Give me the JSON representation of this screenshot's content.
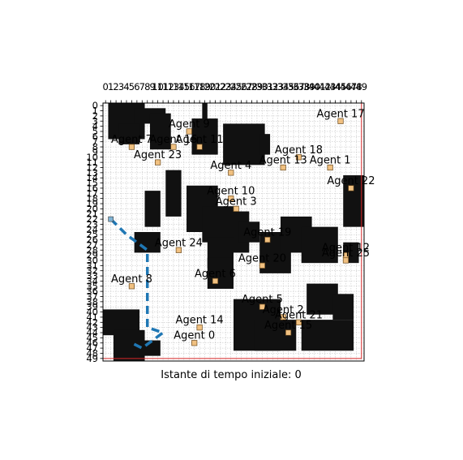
{
  "chart_data": {
    "type": "scatter",
    "title": "",
    "xlabel": "Istante di tempo iniziale: 0",
    "ylabel": "",
    "xlim": [
      0,
      49
    ],
    "ylim": [
      49,
      0
    ],
    "x_ticks": [
      0,
      1,
      2,
      3,
      4,
      5,
      6,
      7,
      8,
      9,
      10,
      11,
      12,
      13,
      14,
      15,
      16,
      17,
      18,
      19,
      20,
      21,
      22,
      23,
      24,
      25,
      26,
      27,
      28,
      29,
      30,
      31,
      32,
      33,
      34,
      35,
      36,
      37,
      38,
      39,
      40,
      41,
      42,
      43,
      44,
      45,
      46,
      47,
      48,
      49
    ],
    "y_ticks": [
      0,
      1,
      2,
      3,
      4,
      5,
      6,
      7,
      8,
      9,
      10,
      11,
      12,
      13,
      14,
      15,
      16,
      17,
      18,
      19,
      20,
      21,
      22,
      23,
      24,
      25,
      26,
      27,
      28,
      29,
      30,
      31,
      32,
      33,
      34,
      35,
      36,
      37,
      38,
      39,
      40,
      41,
      42,
      43,
      44,
      45,
      46,
      47,
      48,
      49
    ],
    "x_axis_position": "top",
    "grid": true,
    "grid_color": "#bbbbbb",
    "obstacle_color": "#111111",
    "agent_color": "#f0c080",
    "path_color": "#1f77b4",
    "boundary_color": "#d62728",
    "boundary": {
      "x": [
        0,
        49
      ],
      "y": [
        0,
        49
      ]
    },
    "obstacles": [
      {
        "x": [
          1,
          7
        ],
        "y": [
          0,
          6
        ]
      },
      {
        "x": [
          6,
          11
        ],
        "y": [
          1,
          3
        ]
      },
      {
        "x": [
          9,
          12
        ],
        "y": [
          2,
          8
        ]
      },
      {
        "x": [
          3,
          6
        ],
        "y": [
          4,
          7
        ]
      },
      {
        "x": [
          19,
          19
        ],
        "y": [
          0,
          3
        ]
      },
      {
        "x": [
          17,
          21
        ],
        "y": [
          3,
          9
        ]
      },
      {
        "x": [
          23,
          30
        ],
        "y": [
          4,
          11
        ]
      },
      {
        "x": [
          30,
          31
        ],
        "y": [
          6,
          9
        ]
      },
      {
        "x": [
          12,
          14
        ],
        "y": [
          13,
          21
        ]
      },
      {
        "x": [
          8,
          10
        ],
        "y": [
          17,
          23
        ]
      },
      {
        "x": [
          16,
          21
        ],
        "y": [
          16,
          24
        ]
      },
      {
        "x": [
          19,
          24
        ],
        "y": [
          20,
          26
        ]
      },
      {
        "x": [
          23,
          27
        ],
        "y": [
          21,
          28
        ]
      },
      {
        "x": [
          26,
          29
        ],
        "y": [
          23,
          26
        ]
      },
      {
        "x": [
          6,
          10
        ],
        "y": [
          25,
          28
        ]
      },
      {
        "x": [
          20,
          24
        ],
        "y": [
          26,
          31
        ]
      },
      {
        "x": [
          20,
          24
        ],
        "y": [
          30,
          35
        ]
      },
      {
        "x": [
          30,
          35
        ],
        "y": [
          25,
          32
        ]
      },
      {
        "x": [
          34,
          39
        ],
        "y": [
          22,
          28
        ]
      },
      {
        "x": [
          38,
          44
        ],
        "y": [
          24,
          30
        ]
      },
      {
        "x": [
          46,
          49
        ],
        "y": [
          14,
          23
        ]
      },
      {
        "x": [
          46,
          48
        ],
        "y": [
          27,
          30
        ]
      },
      {
        "x": [
          25,
          33
        ],
        "y": [
          38,
          47
        ]
      },
      {
        "x": [
          29,
          36
        ],
        "y": [
          42,
          47
        ]
      },
      {
        "x": [
          39,
          44
        ],
        "y": [
          35,
          40
        ]
      },
      {
        "x": [
          44,
          47
        ],
        "y": [
          37,
          41
        ]
      },
      {
        "x": [
          38,
          47
        ],
        "y": [
          42,
          47
        ]
      },
      {
        "x": [
          0,
          6
        ],
        "y": [
          40,
          44
        ]
      },
      {
        "x": [
          2,
          7
        ],
        "y": [
          44,
          49
        ]
      },
      {
        "x": [
          7,
          10
        ],
        "y": [
          46,
          48
        ]
      }
    ],
    "agents": [
      {
        "name": "Agent 0",
        "x": 17,
        "y": 46,
        "label": "Agent 0"
      },
      {
        "name": "Agent 1",
        "x": 43,
        "y": 12,
        "label": "Agent 1"
      },
      {
        "name": "Agent 2",
        "x": 34,
        "y": 41,
        "label": "Agent 2"
      },
      {
        "name": "Agent 3",
        "x": 25,
        "y": 20,
        "label": "Agent 3"
      },
      {
        "name": "Agent 4",
        "x": 24,
        "y": 13,
        "label": "Agent 4"
      },
      {
        "name": "Agent 5",
        "x": 30,
        "y": 39,
        "label": "Agent 5"
      },
      {
        "name": "Agent 6",
        "x": 21,
        "y": 34,
        "label": "Agent 6"
      },
      {
        "name": "Agent 7",
        "x": 5,
        "y": 8,
        "label": "Agent 7"
      },
      {
        "name": "Agent 8",
        "x": 5,
        "y": 35,
        "label": "Agent 8"
      },
      {
        "name": "Agent 9",
        "x": 16,
        "y": 5,
        "label": "Agent 9"
      },
      {
        "name": "Agent 10",
        "x": 24,
        "y": 18,
        "label": "Agent 10"
      },
      {
        "name": "Agent 11",
        "x": 18,
        "y": 8,
        "label": "Agent 11"
      },
      {
        "name": "Agent 12",
        "x": 46,
        "y": 29,
        "label": "Agent 12"
      },
      {
        "name": "Agent 13",
        "x": 34,
        "y": 12,
        "label": "Agent 13"
      },
      {
        "name": "Agent 14",
        "x": 18,
        "y": 43,
        "label": "Agent 14"
      },
      {
        "name": "Agent 15",
        "x": 35,
        "y": 44,
        "label": "Agent 15"
      },
      {
        "name": "Agent 16",
        "x": 13,
        "y": 8,
        "label": "Agent 16"
      },
      {
        "name": "Agent 17",
        "x": 45,
        "y": 3,
        "label": "Agent 17"
      },
      {
        "name": "Agent 18",
        "x": 37,
        "y": 10,
        "label": "Agent 18"
      },
      {
        "name": "Agent 19",
        "x": 31,
        "y": 26,
        "label": "Agent 19"
      },
      {
        "name": "Agent 20",
        "x": 30,
        "y": 31,
        "label": "Agent 20"
      },
      {
        "name": "Agent 21",
        "x": 37,
        "y": 42,
        "label": "Agent 21"
      },
      {
        "name": "Agent 22",
        "x": 47,
        "y": 16,
        "label": "Agent 22"
      },
      {
        "name": "Agent 23",
        "x": 10,
        "y": 11,
        "label": "Agent 23"
      },
      {
        "name": "Agent 24",
        "x": 14,
        "y": 28,
        "label": "Agent 24"
      },
      {
        "name": "Agent 25",
        "x": 46,
        "y": 30,
        "label": "Agent 25"
      }
    ],
    "path": {
      "x": [
        1,
        4,
        8,
        8,
        8,
        11,
        7,
        5
      ],
      "y": [
        22,
        25,
        28,
        34,
        43,
        44,
        47,
        46
      ]
    }
  },
  "caption": "Istante di tempo iniziale: 0"
}
